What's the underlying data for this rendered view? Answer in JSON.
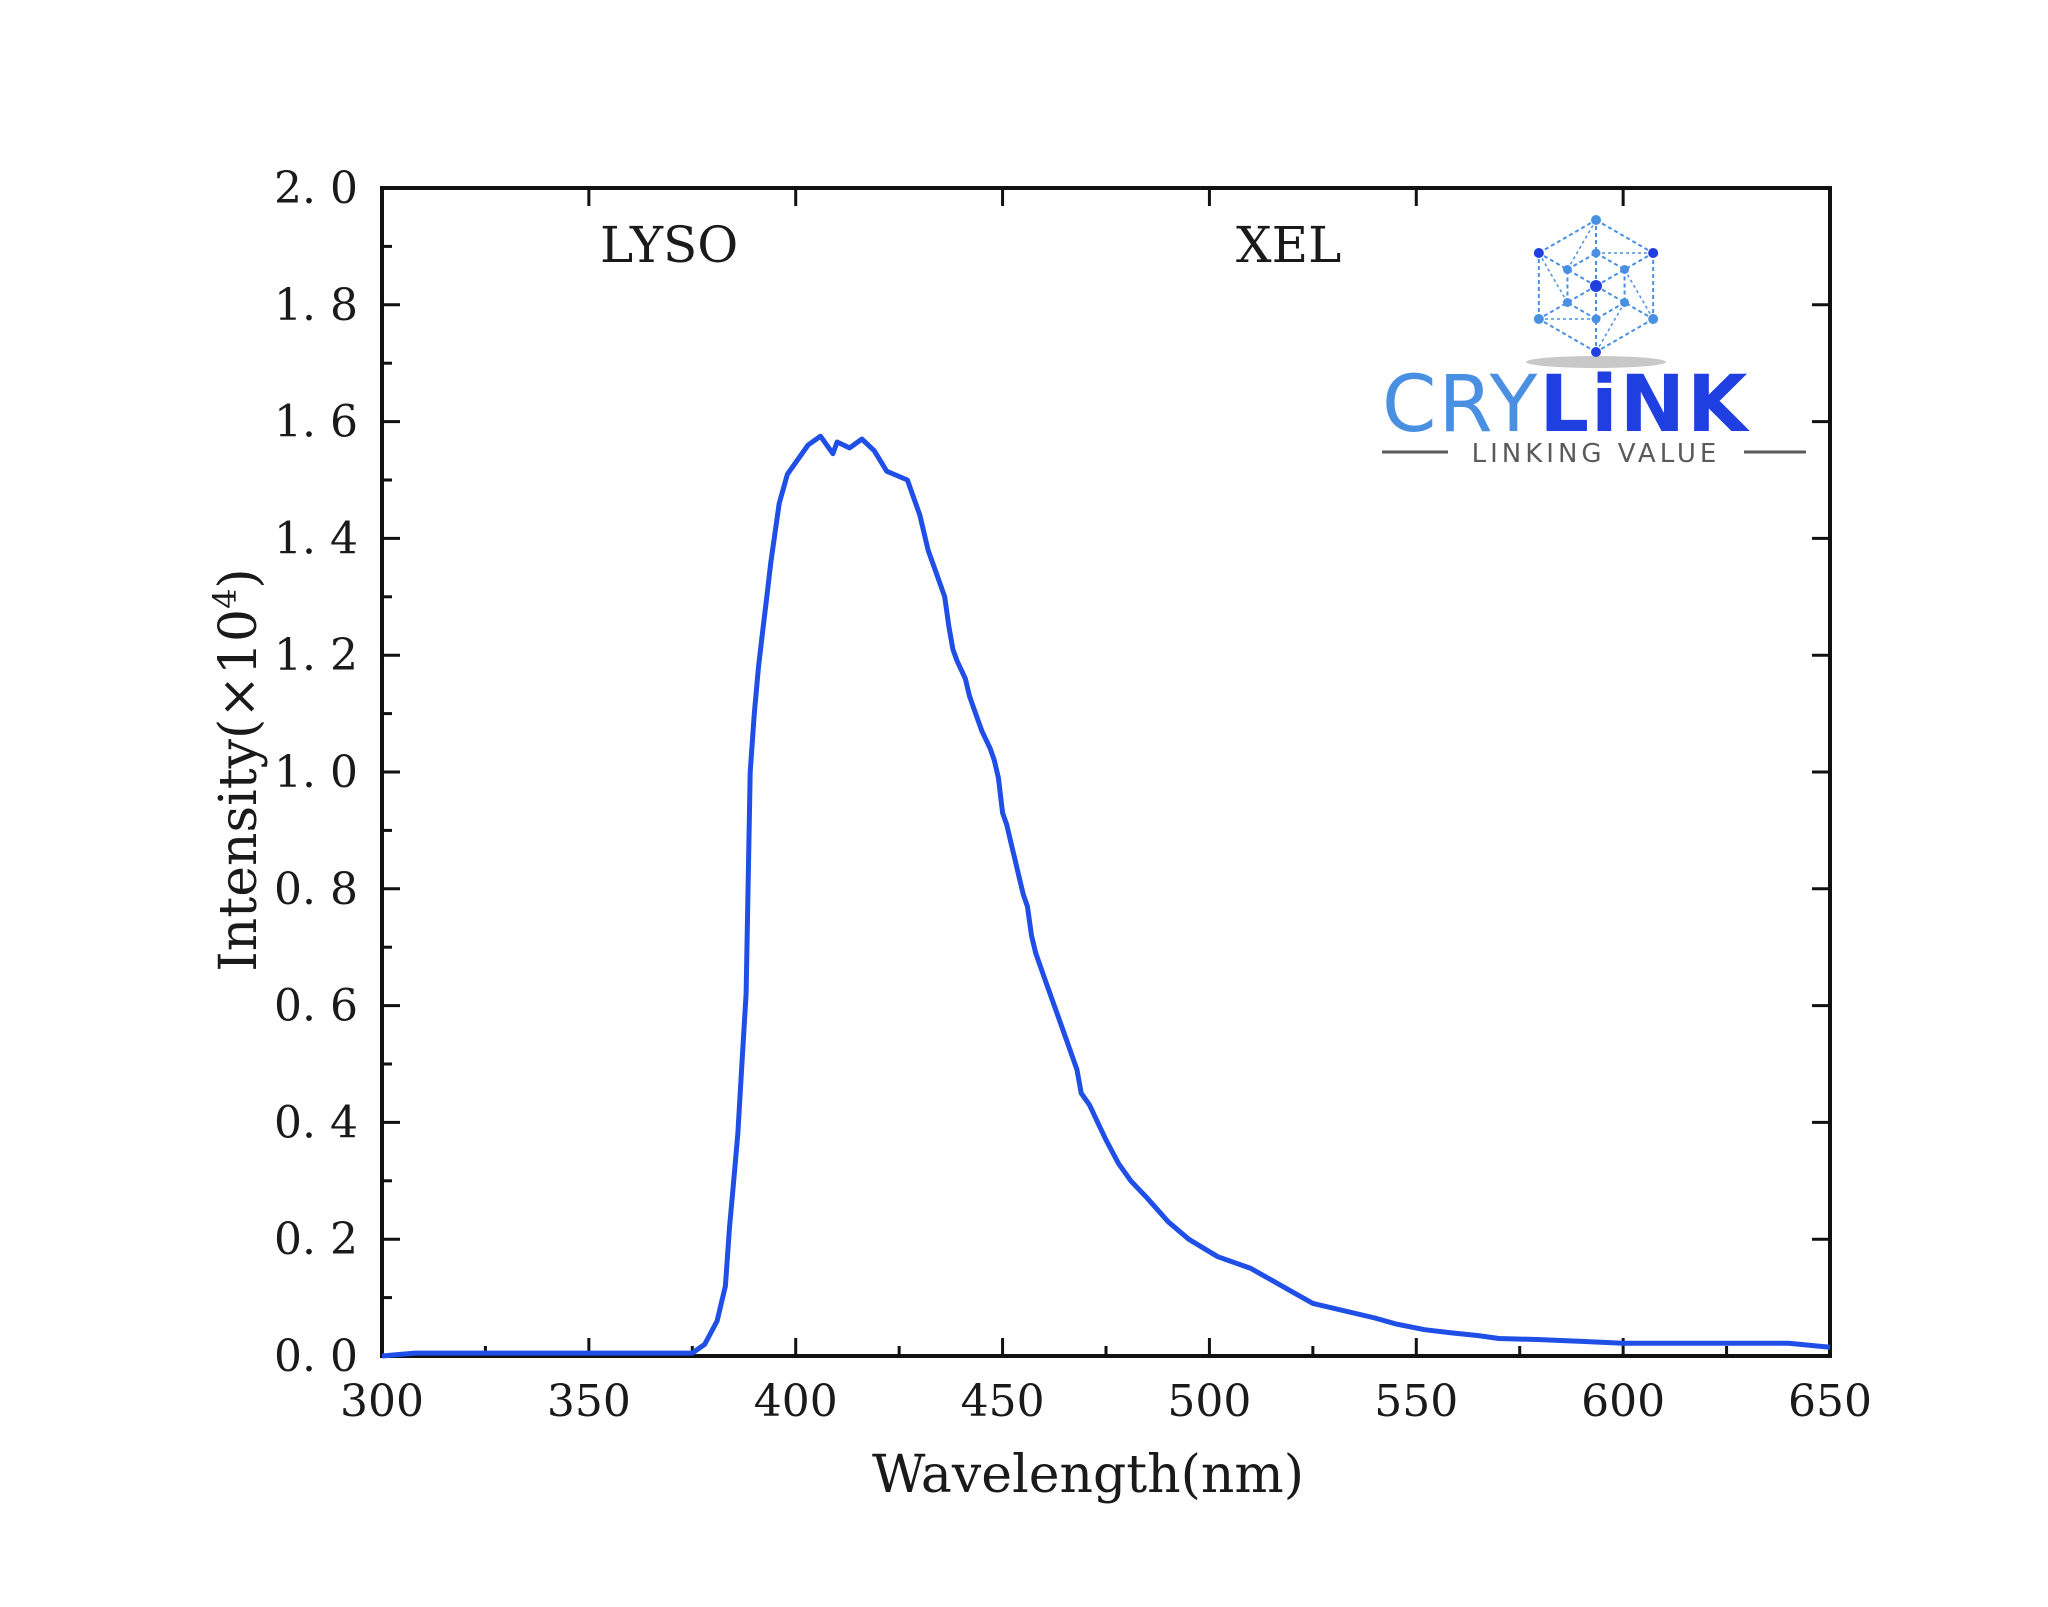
{
  "chart_data": {
    "type": "line",
    "xlabel": "Wavelength(nm)",
    "ylabel_main": "Intensity(×10",
    "ylabel_sup": "4",
    "ylabel_end": ")",
    "xlim": [
      300,
      650
    ],
    "ylim": [
      0,
      2.0
    ],
    "x_ticks": [
      300,
      350,
      400,
      450,
      500,
      550,
      600,
      650
    ],
    "x_tick_labels": [
      "300",
      "350",
      "400",
      "450",
      "500",
      "550",
      "600",
      "650"
    ],
    "y_ticks": [
      0,
      0.2,
      0.4,
      0.6,
      0.8,
      1.0,
      1.2,
      1.4,
      1.6,
      1.8,
      2.0
    ],
    "y_tick_labels": [
      "0. 0",
      "0. 2",
      "0. 4",
      "0. 6",
      "0. 8",
      "1. 0",
      "1. 2",
      "1. 4",
      "1. 6",
      "1. 8",
      "2. 0"
    ],
    "annotations": [
      "LYSO",
      "XEL"
    ],
    "line_color": "#1f4fe6",
    "grid": false,
    "series": [
      {
        "x": [
          300,
          308,
          320,
          340,
          360,
          375,
          378,
          381,
          383,
          384,
          385,
          386,
          387,
          388,
          389,
          390,
          391,
          392,
          393,
          394,
          396,
          398,
          400,
          403,
          406,
          409,
          410,
          413,
          416,
          419,
          422,
          427,
          430,
          432,
          434,
          436,
          437,
          438,
          439,
          441,
          442,
          443,
          445,
          447,
          448,
          449,
          450,
          451,
          452,
          453,
          454,
          455,
          456,
          457,
          458,
          460,
          462,
          464,
          466,
          468,
          469,
          470,
          471,
          473,
          475,
          478,
          481,
          485,
          490,
          495,
          502,
          510,
          515,
          520,
          525,
          540,
          545,
          552,
          558,
          565,
          570,
          580,
          590,
          600,
          610,
          620,
          630,
          640,
          650
        ],
        "y": [
          0.0,
          0.005,
          0.005,
          0.005,
          0.005,
          0.005,
          0.02,
          0.06,
          0.12,
          0.22,
          0.3,
          0.38,
          0.5,
          0.62,
          1.0,
          1.1,
          1.18,
          1.24,
          1.3,
          1.36,
          1.46,
          1.51,
          1.53,
          1.56,
          1.575,
          1.545,
          1.565,
          1.555,
          1.57,
          1.55,
          1.515,
          1.5,
          1.44,
          1.38,
          1.34,
          1.3,
          1.25,
          1.21,
          1.19,
          1.16,
          1.13,
          1.11,
          1.07,
          1.04,
          1.02,
          0.99,
          0.93,
          0.91,
          0.88,
          0.85,
          0.82,
          0.79,
          0.77,
          0.72,
          0.69,
          0.65,
          0.61,
          0.57,
          0.53,
          0.49,
          0.45,
          0.44,
          0.43,
          0.4,
          0.37,
          0.33,
          0.3,
          0.27,
          0.23,
          0.2,
          0.17,
          0.15,
          0.13,
          0.11,
          0.09,
          0.065,
          0.055,
          0.045,
          0.04,
          0.035,
          0.03,
          0.028,
          0.025,
          0.022,
          0.022,
          0.022,
          0.022,
          0.022,
          0.015
        ]
      }
    ]
  },
  "logo": {
    "brand_light": "CRY",
    "brand_bold": "LiNK",
    "tagline": "LINKING VALUE",
    "icon": "hexagon-network-icon",
    "color_light": "#4a90e2",
    "color_bold": "#1f3fe0",
    "color_gray": "#5a5a5a"
  }
}
